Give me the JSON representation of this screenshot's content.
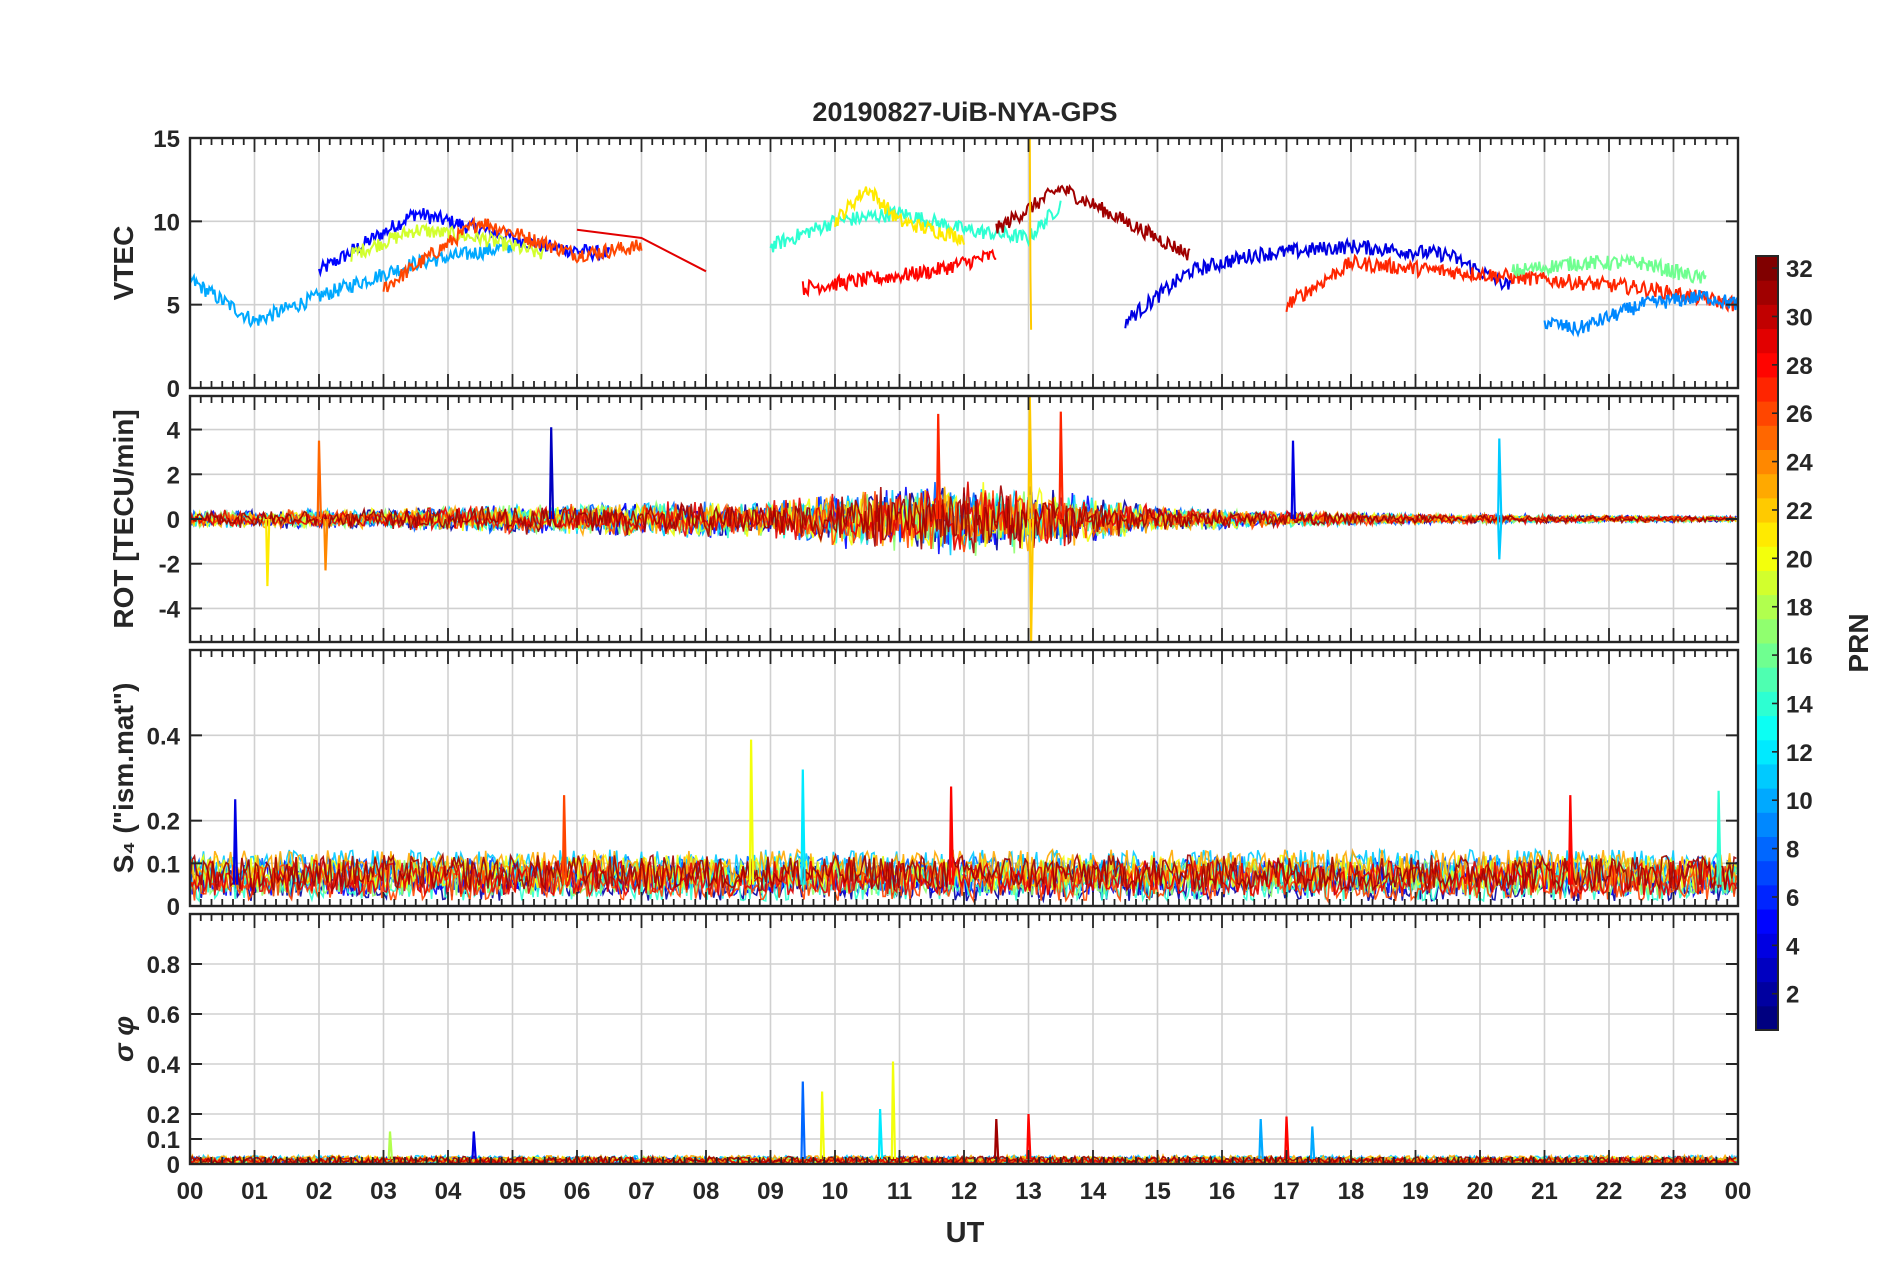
{
  "figure": {
    "title": "20190827-UiB-NYA-GPS",
    "xlabel": "UT",
    "x_tick_labels": [
      "00",
      "01",
      "02",
      "03",
      "04",
      "05",
      "06",
      "07",
      "08",
      "09",
      "10",
      "11",
      "12",
      "13",
      "14",
      "15",
      "16",
      "17",
      "18",
      "19",
      "20",
      "21",
      "22",
      "23",
      "00"
    ]
  },
  "colorbar": {
    "label": "PRN",
    "range": [
      1,
      32
    ],
    "tick_labels": [
      "2",
      "4",
      "6",
      "8",
      "10",
      "12",
      "14",
      "16",
      "18",
      "20",
      "22",
      "24",
      "26",
      "28",
      "30",
      "32"
    ],
    "colormap": "jet"
  },
  "chart_data": [
    {
      "type": "line",
      "panel": "vtec",
      "ylabel": "VTEC",
      "xlim": [
        0,
        24
      ],
      "ylim": [
        0,
        15
      ],
      "y_ticks": [
        0,
        5,
        10,
        15
      ],
      "y_tick_labels": [
        "0",
        "5",
        "10",
        "15"
      ],
      "grid": true,
      "series_mode": "one line per satellite PRN, colored by PRN",
      "series": [
        {
          "prn": 5,
          "x": [
            2.0,
            3.5,
            4.5,
            5.5,
            6.5
          ],
          "y": [
            7.0,
            10.5,
            9.5,
            8.5,
            8.0
          ]
        },
        {
          "prn": 10,
          "x": [
            0.0,
            1.0,
            2.0,
            3.5,
            5.0
          ],
          "y": [
            6.5,
            4.0,
            5.5,
            7.5,
            8.5
          ]
        },
        {
          "prn": 19,
          "x": [
            2.5,
            3.5,
            4.5,
            5.5
          ],
          "y": [
            8.0,
            9.5,
            9.0,
            8.0
          ]
        },
        {
          "prn": 26,
          "x": [
            3.0,
            4.5,
            6.0,
            7.0
          ],
          "y": [
            6.0,
            10.0,
            8.0,
            8.5
          ]
        },
        {
          "prn": 29,
          "x": [
            6.0,
            7.0,
            8.0
          ],
          "y": [
            9.5,
            9.0,
            7.0
          ]
        },
        {
          "prn": 14,
          "x": [
            9.0,
            10.0,
            11.0,
            12.0,
            13.0,
            13.5
          ],
          "y": [
            8.5,
            10.0,
            10.5,
            9.5,
            9.0,
            11.0
          ]
        },
        {
          "prn": 21,
          "x": [
            10.0,
            10.5,
            11.0,
            12.0
          ],
          "y": [
            10.0,
            12.0,
            10.0,
            9.0
          ]
        },
        {
          "prn": 28,
          "x": [
            9.5,
            10.5,
            11.5,
            12.5
          ],
          "y": [
            6.0,
            6.5,
            7.0,
            8.0
          ]
        },
        {
          "prn": 31,
          "x": [
            12.5,
            13.5,
            14.5,
            15.5
          ],
          "y": [
            9.5,
            12.0,
            10.0,
            8.0
          ]
        },
        {
          "prn": 4,
          "x": [
            14.5,
            15.5,
            16.5,
            18.0,
            19.5,
            20.5
          ],
          "y": [
            4.0,
            7.0,
            8.0,
            8.5,
            8.0,
            6.0
          ]
        },
        {
          "prn": 27,
          "x": [
            17.0,
            18.0,
            19.5,
            21.0,
            22.5,
            24.0
          ],
          "y": [
            5.0,
            7.5,
            7.0,
            6.5,
            6.0,
            5.0
          ]
        },
        {
          "prn": 16,
          "x": [
            20.5,
            21.5,
            22.5,
            23.5
          ],
          "y": [
            7.0,
            7.5,
            7.5,
            6.5
          ]
        },
        {
          "prn": 9,
          "x": [
            21.0,
            21.5,
            22.5,
            23.5,
            24.0
          ],
          "y": [
            4.0,
            3.5,
            5.0,
            5.5,
            5.0
          ]
        },
        {
          "prn": 22,
          "x": [
            13.02,
            13.03,
            13.04
          ],
          "y": [
            15.0,
            7.0,
            3.5
          ]
        }
      ]
    },
    {
      "type": "line",
      "panel": "rot",
      "ylabel": "ROT [TECU/min]",
      "xlim": [
        0,
        24
      ],
      "ylim": [
        -5.5,
        5.5
      ],
      "y_ticks": [
        -4,
        -2,
        0,
        2,
        4
      ],
      "y_tick_labels": [
        "-4",
        "-2",
        "0",
        "2",
        "4"
      ],
      "grid": true,
      "series_mode": "one line per satellite PRN, colored by PRN",
      "spikes": [
        {
          "prn": 3,
          "x": 5.6,
          "y": 4.1
        },
        {
          "prn": 25,
          "x": 2.0,
          "y": 3.5
        },
        {
          "prn": 27,
          "x": 11.6,
          "y": 4.7
        },
        {
          "prn": 27,
          "x": 13.5,
          "y": 4.8
        },
        {
          "prn": 22,
          "x": 13.02,
          "y": 5.5
        },
        {
          "prn": 22,
          "x": 13.04,
          "y": -5.5
        },
        {
          "prn": 4,
          "x": 17.1,
          "y": 3.5
        },
        {
          "prn": 11,
          "x": 20.3,
          "y": 3.6
        },
        {
          "prn": 11,
          "x": 20.3,
          "y": -1.8
        },
        {
          "prn": 21,
          "x": 1.2,
          "y": -3.0
        },
        {
          "prn": 24,
          "x": 2.1,
          "y": -2.3
        }
      ],
      "activity_envelope": {
        "x": [
          0,
          3,
          6,
          9,
          10.5,
          12,
          13,
          15,
          17,
          19,
          21,
          24
        ],
        "amplitude": [
          0.4,
          0.5,
          0.8,
          0.9,
          1.5,
          1.8,
          1.6,
          0.6,
          0.4,
          0.25,
          0.2,
          0.15
        ]
      }
    },
    {
      "type": "line",
      "panel": "s4",
      "ylabel": "S₄ (\"ism.mat\")",
      "xlim": [
        0,
        24
      ],
      "ylim": [
        0,
        0.6
      ],
      "y_ticks": [
        0,
        0.1,
        0.2,
        0.4
      ],
      "y_tick_labels": [
        "0",
        "0.1",
        "0.2",
        "0.4"
      ],
      "grid": true,
      "series_mode": "one line per satellite PRN, colored by PRN",
      "spikes": [
        {
          "prn": 20,
          "x": 8.7,
          "y": 0.39
        },
        {
          "prn": 12,
          "x": 9.5,
          "y": 0.32
        },
        {
          "prn": 28,
          "x": 11.8,
          "y": 0.28
        },
        {
          "prn": 26,
          "x": 5.8,
          "y": 0.26
        },
        {
          "prn": 4,
          "x": 0.7,
          "y": 0.25
        },
        {
          "prn": 14,
          "x": 23.7,
          "y": 0.27
        },
        {
          "prn": 28,
          "x": 21.4,
          "y": 0.26
        }
      ],
      "baseline_range": [
        0.03,
        0.15
      ]
    },
    {
      "type": "line",
      "panel": "sigma_phi",
      "ylabel": "σ φ",
      "xlim": [
        0,
        24
      ],
      "ylim": [
        0,
        1.0
      ],
      "y_ticks": [
        0,
        0.1,
        0.2,
        0.4,
        0.6,
        0.8
      ],
      "y_tick_labels": [
        "0",
        "0.1",
        "0.2",
        "0.4",
        "0.6",
        "0.8"
      ],
      "grid": true,
      "series_mode": "one line per satellite PRN, colored by PRN",
      "spikes": [
        {
          "prn": 8,
          "x": 9.5,
          "y": 0.33
        },
        {
          "prn": 20,
          "x": 10.9,
          "y": 0.41
        },
        {
          "prn": 20,
          "x": 9.8,
          "y": 0.29
        },
        {
          "prn": 12,
          "x": 10.7,
          "y": 0.22
        },
        {
          "prn": 28,
          "x": 13.0,
          "y": 0.2
        },
        {
          "prn": 31,
          "x": 12.5,
          "y": 0.18
        },
        {
          "prn": 10,
          "x": 16.6,
          "y": 0.18
        },
        {
          "prn": 28,
          "x": 17.0,
          "y": 0.19
        },
        {
          "prn": 10,
          "x": 17.4,
          "y": 0.15
        },
        {
          "prn": 4,
          "x": 4.4,
          "y": 0.13
        },
        {
          "prn": 18,
          "x": 3.1,
          "y": 0.13
        }
      ],
      "baseline_range": [
        0.0,
        0.04
      ]
    }
  ]
}
